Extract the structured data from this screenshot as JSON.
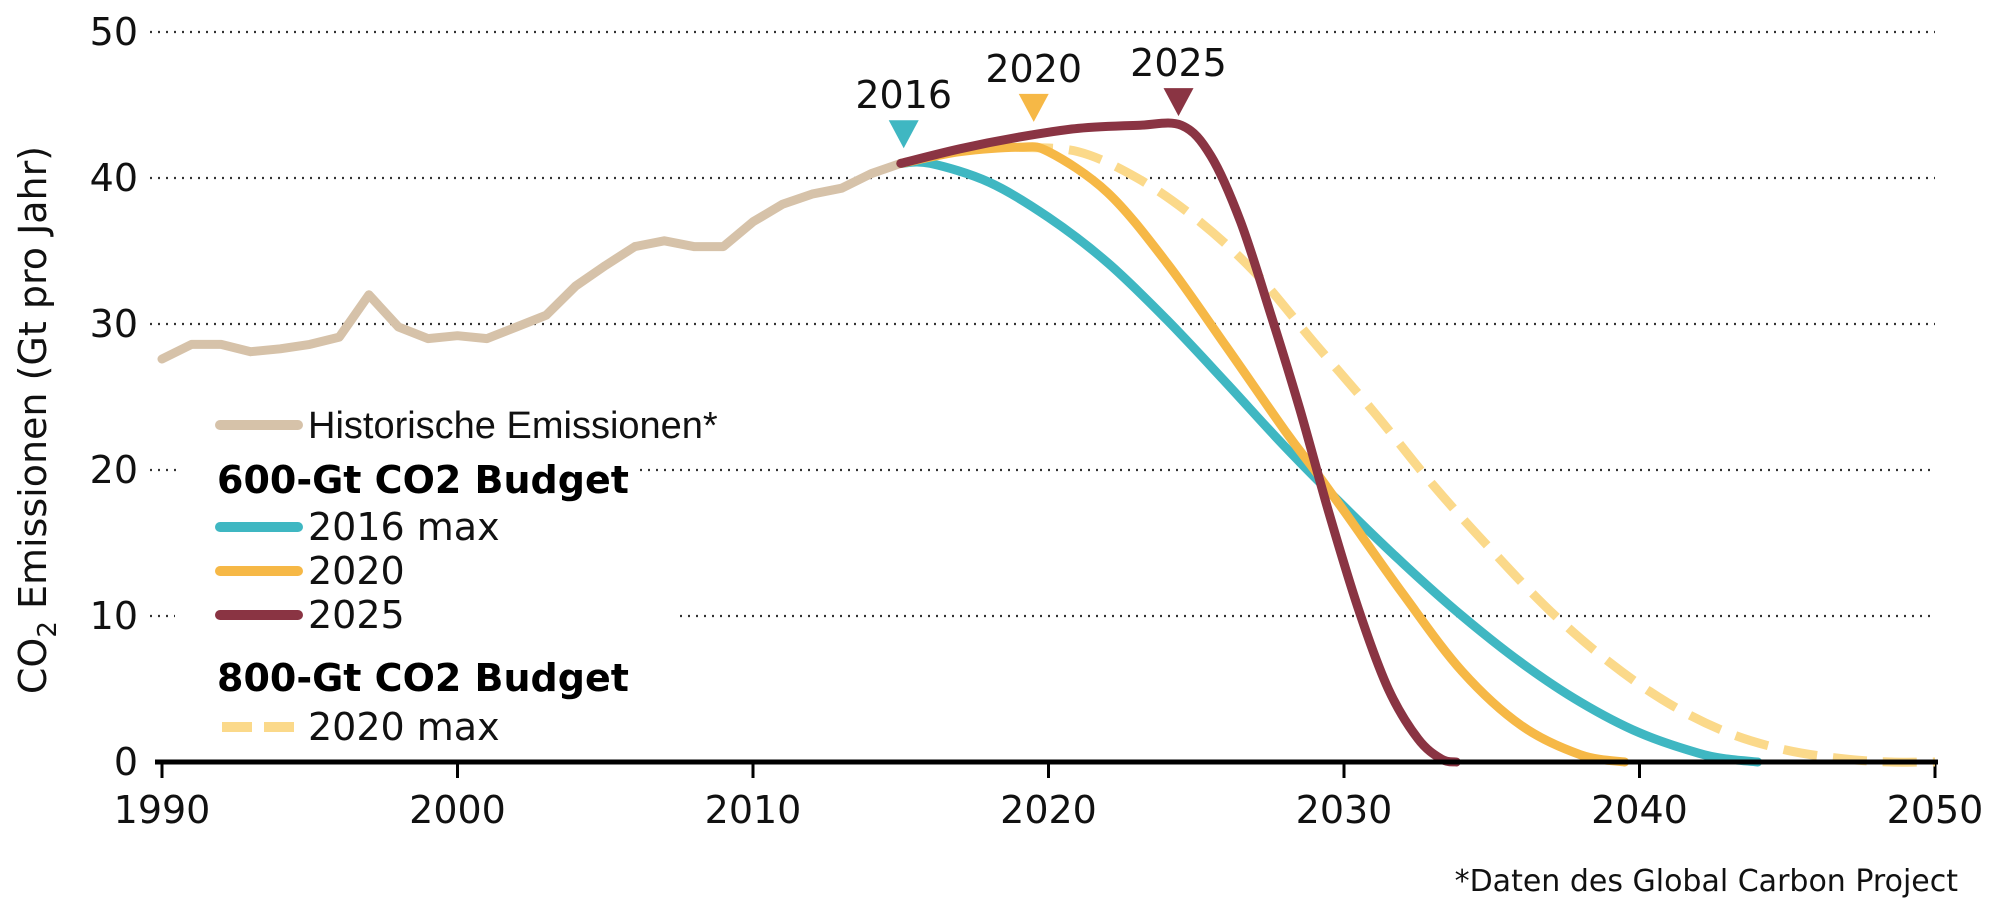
{
  "chart_data": {
    "type": "line",
    "ylabel_main": "CO",
    "ylabel_sub": "2",
    "ylabel_rest": " Emissionen (Gt pro Jahr)",
    "xlim": [
      1990,
      2050
    ],
    "ylim": [
      0,
      50
    ],
    "xticks": [
      "1990",
      "2000",
      "2010",
      "2020",
      "2030",
      "2040",
      "2050"
    ],
    "yticks": [
      "0",
      "10",
      "20",
      "30",
      "40",
      "50"
    ],
    "grid": "horizontal dotted",
    "series": [
      {
        "name": "Historische Emissionen*",
        "color": "#d6c2a9",
        "style": "solid",
        "x": [
          1990,
          1991,
          1992,
          1993,
          1994,
          1995,
          1996,
          1997,
          1998,
          1999,
          2000,
          2001,
          2002,
          2003,
          2004,
          2005,
          2006,
          2007,
          2008,
          2009,
          2010,
          2011,
          2012,
          2013,
          2014,
          2015
        ],
        "y": [
          27.6,
          28.6,
          28.6,
          28.1,
          28.3,
          28.6,
          29.1,
          32.0,
          29.8,
          29.0,
          29.2,
          29.0,
          29.8,
          30.6,
          32.6,
          34.0,
          35.3,
          35.7,
          35.3,
          35.3,
          37.0,
          38.2,
          38.9,
          39.3,
          40.3,
          41.0
        ]
      },
      {
        "name": "2016 max",
        "group": "600-Gt CO2 Budget",
        "color": "#3fb7c2",
        "style": "solid",
        "x": [
          2015,
          2016,
          2018,
          2020,
          2022,
          2024,
          2026,
          2028,
          2030,
          2032,
          2034,
          2036,
          2038,
          2040,
          2042,
          2043,
          2044
        ],
        "y": [
          41.0,
          41.0,
          39.7,
          37.3,
          34.2,
          30.3,
          26.0,
          21.6,
          17.5,
          13.6,
          10.0,
          6.8,
          4.1,
          2.0,
          0.6,
          0.2,
          0.0
        ]
      },
      {
        "name": "2020",
        "group": "600-Gt CO2 Budget",
        "color": "#f6b846",
        "style": "solid",
        "x": [
          2015,
          2017,
          2019,
          2020,
          2022,
          2024,
          2026,
          2028,
          2029,
          2030,
          2032,
          2034,
          2036,
          2038,
          2039.5
        ],
        "y": [
          41.0,
          41.8,
          42.1,
          41.8,
          39.0,
          34.2,
          28.5,
          22.7,
          20.0,
          17.2,
          11.5,
          6.2,
          2.5,
          0.5,
          0.0
        ]
      },
      {
        "name": "2025",
        "group": "600-Gt CO2 Budget",
        "color": "#8a3443",
        "style": "solid",
        "x": [
          2015,
          2017,
          2019,
          2021,
          2023,
          2024.5,
          2025.5,
          2026.5,
          2027.5,
          2028.5,
          2029.5,
          2030.5,
          2031.5,
          2032.5,
          2033.3,
          2033.8
        ],
        "y": [
          41.0,
          42.0,
          42.8,
          43.4,
          43.6,
          43.6,
          41.5,
          37.0,
          30.8,
          24.2,
          17.0,
          10.4,
          5.0,
          1.6,
          0.2,
          0.0
        ]
      },
      {
        "name": "2020 max",
        "group": "800-Gt CO2 Budget",
        "color": "#fbd98a",
        "style": "dashed",
        "x": [
          2019,
          2021,
          2023,
          2025,
          2027,
          2029,
          2031,
          2033,
          2035,
          2037,
          2039,
          2041,
          2043,
          2045,
          2047,
          2048.5,
          2050
        ],
        "y": [
          42.1,
          41.8,
          40.0,
          37.2,
          33.5,
          28.7,
          24.0,
          19.0,
          14.5,
          10.3,
          6.8,
          4.0,
          2.0,
          0.8,
          0.2,
          0.0,
          0.0
        ]
      }
    ],
    "markers": [
      {
        "label": "2016",
        "x": 2015.1,
        "y": 43.0,
        "color": "#3fb7c2"
      },
      {
        "label": "2020",
        "x": 2019.5,
        "y": 44.8,
        "color": "#f6b846"
      },
      {
        "label": "2025",
        "x": 2024.4,
        "y": 45.2,
        "color": "#8a3443"
      }
    ],
    "legend": {
      "hist": "Historische Emissionen*",
      "group1_title": "600-Gt CO2 Budget",
      "group1_items": [
        "2016 max",
        "2020",
        "2025"
      ],
      "group2_title": "800-Gt CO2 Budget",
      "group2_items": [
        "2020 max"
      ]
    },
    "footnote": "*Daten des Global Carbon Project"
  }
}
